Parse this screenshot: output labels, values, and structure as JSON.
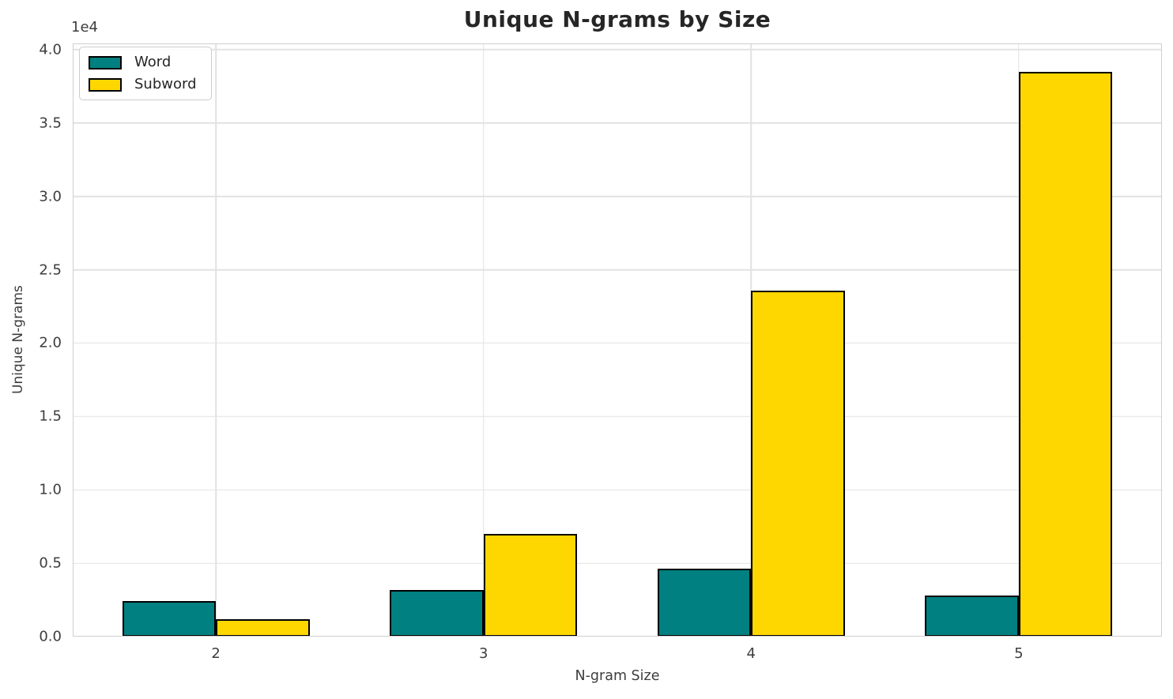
{
  "chart_data": {
    "type": "bar",
    "title": "Unique N-grams by Size",
    "xlabel": "N-gram Size",
    "ylabel": "Unique N-grams",
    "offset_label": "1e4",
    "categories": [
      "2",
      "3",
      "4",
      "5"
    ],
    "x_values": [
      2,
      3,
      4,
      5
    ],
    "series": [
      {
        "name": "Word",
        "color": "#008080",
        "values": [
          2400,
          3200,
          4650,
          2800
        ]
      },
      {
        "name": "Subword",
        "color": "#FFD700",
        "values": [
          1200,
          7000,
          23600,
          38500
        ]
      }
    ],
    "bar_width": 0.35,
    "bar_edge_color": "#000000",
    "xlim": [
      1.465,
      5.535
    ],
    "ylim": [
      0,
      40425
    ],
    "yticks": [
      0,
      5000,
      10000,
      15000,
      20000,
      25000,
      30000,
      35000,
      40000
    ],
    "ytick_labels": [
      "0.0",
      "0.5",
      "1.0",
      "1.5",
      "2.0",
      "2.5",
      "3.0",
      "3.5",
      "4.0"
    ],
    "grid": true,
    "legend_position": "upper left"
  },
  "colors": {
    "grid": "#e2e2e2",
    "spine": "#cfcfcf",
    "tick_text": "#3d3d3d",
    "title_text": "#262626",
    "background": "#ffffff"
  }
}
